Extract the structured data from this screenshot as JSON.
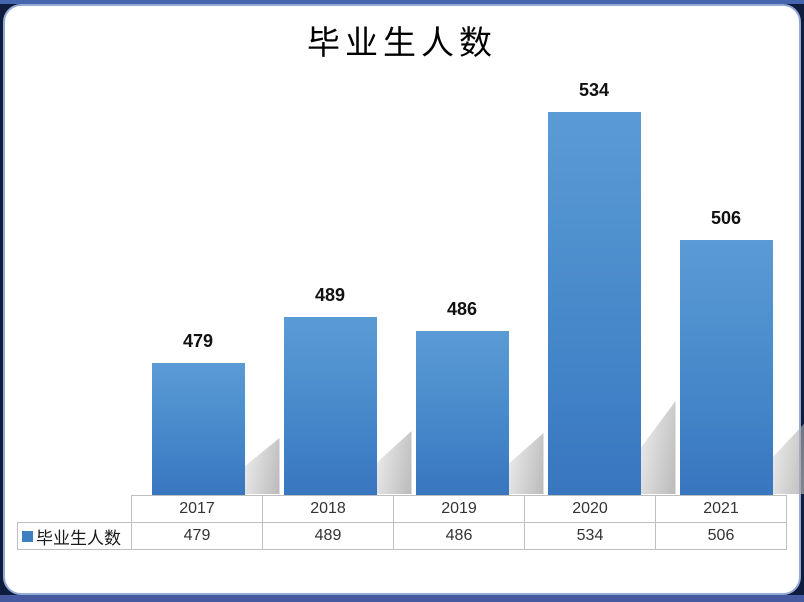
{
  "title": {
    "text": "毕业生人数"
  },
  "chart_data": {
    "type": "bar",
    "title": "毕业生人数",
    "categories": [
      "2017",
      "2018",
      "2019",
      "2020",
      "2021"
    ],
    "series": [
      {
        "name": "毕业生人数",
        "values": [
          479,
          489,
          486,
          534,
          506
        ]
      }
    ],
    "data_labels": [
      "479",
      "489",
      "486",
      "534",
      "506"
    ],
    "xlabel": "",
    "ylabel": "",
    "ylim": [
      450,
      545
    ],
    "grid": false,
    "axes_hidden": true,
    "legend_position": "data-table-left",
    "bar_color_top": "#5b9bd5",
    "bar_color_bottom": "#3876c0",
    "shadow_color": "#bdbdbd"
  },
  "table": {
    "legend_label": "毕业生人数",
    "legend_marker_color": "#3e7fc1",
    "header": [
      "2017",
      "2018",
      "2019",
      "2020",
      "2021"
    ],
    "values": [
      "479",
      "489",
      "486",
      "534",
      "506"
    ]
  },
  "frame": {
    "background": "#101c3d",
    "accent_top": "#4565ae",
    "accent_bottom": "#44599f"
  }
}
